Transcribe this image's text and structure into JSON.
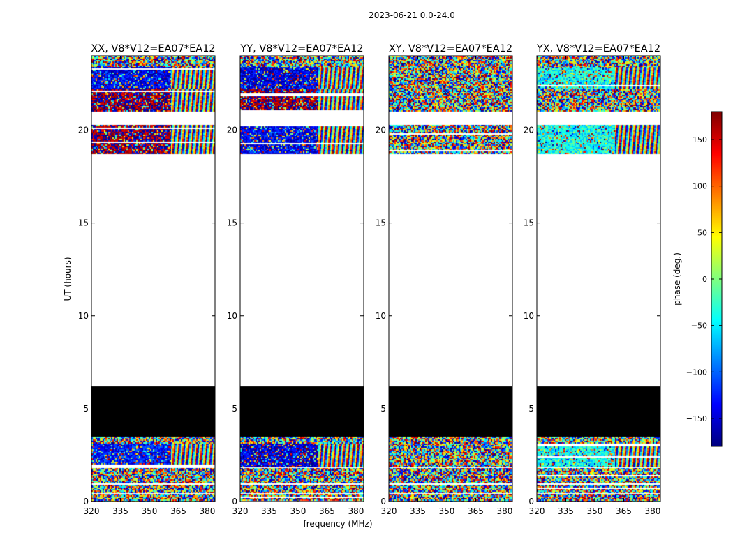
{
  "figure": {
    "suptitle": "2023-06-21 0.0-24.0",
    "xlabel": "frequency (MHz)",
    "ylabel": "UT (hours)"
  },
  "colorbar": {
    "label": "phase (deg.)",
    "range": [
      -180,
      180
    ],
    "ticks": [
      150,
      100,
      50,
      0,
      -50,
      -100,
      -150
    ],
    "tick_labels": [
      "150",
      "100",
      "50",
      "0",
      "−50",
      "−100",
      "−150"
    ],
    "colormap": [
      "#00007f",
      "#0000ff",
      "#007fff",
      "#00ffff",
      "#7fff7f",
      "#ffff00",
      "#ff7f00",
      "#ff0000",
      "#7f0000"
    ]
  },
  "chart_data": [
    {
      "type": "heatmap",
      "title": "XX, V8*V12=EA07*EA12",
      "xlim": [
        320,
        384
      ],
      "ylim": [
        0,
        24
      ],
      "xticks": [
        320,
        335,
        350,
        365,
        380
      ],
      "xtick_labels": [
        "320",
        "335",
        "350",
        "365",
        "380"
      ],
      "yticks": [
        0,
        5,
        10,
        15,
        20
      ],
      "ytick_labels": [
        "0",
        "5",
        "10",
        "15",
        "20"
      ],
      "bands": [
        {
          "t0": 0.0,
          "t1": 0.4,
          "kind": "noise"
        },
        {
          "t0": 0.4,
          "t1": 0.45,
          "kind": "empty"
        },
        {
          "t0": 0.45,
          "t1": 0.9,
          "kind": "noise"
        },
        {
          "t0": 0.9,
          "t1": 1.0,
          "kind": "empty"
        },
        {
          "t0": 1.0,
          "t1": 1.8,
          "kind": "noise"
        },
        {
          "t0": 1.8,
          "t1": 1.85,
          "kind": "empty"
        },
        {
          "t0": 1.85,
          "t1": 3.1,
          "kind": "phase",
          "base": -130,
          "fringe_from": 361
        },
        {
          "t0": 3.1,
          "t1": 3.5,
          "kind": "noise"
        },
        {
          "t0": 3.5,
          "t1": 6.2,
          "kind": "flagged"
        },
        {
          "t0": 18.7,
          "t1": 20.3,
          "kind": "phase",
          "base": 175,
          "fringe_from": 361
        },
        {
          "t0": 21.0,
          "t1": 22.2,
          "kind": "phase",
          "base": 175,
          "fringe_from": 361
        },
        {
          "t0": 22.2,
          "t1": 23.4,
          "kind": "phase",
          "base": -140,
          "fringe_from": 361
        },
        {
          "t0": 23.4,
          "t1": 24.0,
          "kind": "noise"
        }
      ]
    },
    {
      "type": "heatmap",
      "title": "YY, V8*V12=EA07*EA12",
      "xlim": [
        320,
        384
      ],
      "ylim": [
        0,
        24
      ],
      "xticks": [
        320,
        335,
        350,
        365,
        380
      ],
      "xtick_labels": [
        "320",
        "335",
        "350",
        "365",
        "380"
      ],
      "yticks": [
        0,
        5,
        10,
        15,
        20
      ],
      "ytick_labels": [
        "0",
        "5",
        "10",
        "15",
        "20"
      ],
      "bands": [
        {
          "t0": 0.0,
          "t1": 0.4,
          "kind": "noise"
        },
        {
          "t0": 0.4,
          "t1": 0.45,
          "kind": "empty"
        },
        {
          "t0": 0.45,
          "t1": 0.9,
          "kind": "noise"
        },
        {
          "t0": 0.9,
          "t1": 1.0,
          "kind": "empty"
        },
        {
          "t0": 1.0,
          "t1": 1.8,
          "kind": "noise"
        },
        {
          "t0": 1.8,
          "t1": 1.85,
          "kind": "empty"
        },
        {
          "t0": 1.85,
          "t1": 3.1,
          "kind": "phase",
          "base": -150,
          "fringe_from": 360
        },
        {
          "t0": 3.1,
          "t1": 3.5,
          "kind": "noise"
        },
        {
          "t0": 3.5,
          "t1": 6.2,
          "kind": "flagged"
        },
        {
          "t0": 18.7,
          "t1": 20.3,
          "kind": "phase",
          "base": -140,
          "fringe_from": 360
        },
        {
          "t0": 21.0,
          "t1": 22.2,
          "kind": "phase",
          "base": 175,
          "fringe_from": 360
        },
        {
          "t0": 22.2,
          "t1": 23.4,
          "kind": "phase",
          "base": -145,
          "fringe_from": 360
        },
        {
          "t0": 23.4,
          "t1": 24.0,
          "kind": "noise"
        }
      ]
    },
    {
      "type": "heatmap",
      "title": "XY, V8*V12=EA07*EA12",
      "xlim": [
        320,
        384
      ],
      "ylim": [
        0,
        24
      ],
      "xticks": [
        320,
        335,
        350,
        365,
        380
      ],
      "xtick_labels": [
        "320",
        "335",
        "350",
        "365",
        "380"
      ],
      "yticks": [
        0,
        5,
        10,
        15,
        20
      ],
      "ytick_labels": [
        "0",
        "5",
        "10",
        "15",
        "20"
      ],
      "bands": [
        {
          "t0": 0.0,
          "t1": 0.4,
          "kind": "noise"
        },
        {
          "t0": 0.4,
          "t1": 0.45,
          "kind": "empty"
        },
        {
          "t0": 0.45,
          "t1": 0.9,
          "kind": "noise"
        },
        {
          "t0": 0.9,
          "t1": 1.0,
          "kind": "empty"
        },
        {
          "t0": 1.0,
          "t1": 1.8,
          "kind": "noise"
        },
        {
          "t0": 1.8,
          "t1": 1.85,
          "kind": "empty"
        },
        {
          "t0": 1.85,
          "t1": 3.1,
          "kind": "noise"
        },
        {
          "t0": 3.1,
          "t1": 3.5,
          "kind": "noise"
        },
        {
          "t0": 3.5,
          "t1": 6.2,
          "kind": "flagged"
        },
        {
          "t0": 18.7,
          "t1": 20.3,
          "kind": "noise"
        },
        {
          "t0": 21.0,
          "t1": 22.2,
          "kind": "noise"
        },
        {
          "t0": 22.2,
          "t1": 23.4,
          "kind": "noise"
        },
        {
          "t0": 23.4,
          "t1": 24.0,
          "kind": "noise"
        }
      ]
    },
    {
      "type": "heatmap",
      "title": "YX, V8*V12=EA07*EA12",
      "xlim": [
        320,
        384
      ],
      "ylim": [
        0,
        24
      ],
      "xticks": [
        320,
        335,
        350,
        365,
        380
      ],
      "xtick_labels": [
        "320",
        "335",
        "350",
        "365",
        "380"
      ],
      "yticks": [
        0,
        5,
        10,
        15,
        20
      ],
      "ytick_labels": [
        "0",
        "5",
        "10",
        "15",
        "20"
      ],
      "bands": [
        {
          "t0": 0.0,
          "t1": 0.4,
          "kind": "noise"
        },
        {
          "t0": 0.4,
          "t1": 0.45,
          "kind": "empty"
        },
        {
          "t0": 0.45,
          "t1": 0.9,
          "kind": "noise"
        },
        {
          "t0": 0.9,
          "t1": 1.0,
          "kind": "empty"
        },
        {
          "t0": 1.0,
          "t1": 1.8,
          "kind": "noise"
        },
        {
          "t0": 1.8,
          "t1": 1.85,
          "kind": "empty"
        },
        {
          "t0": 1.85,
          "t1": 3.1,
          "kind": "phase",
          "base": -40,
          "fringe_from": 360
        },
        {
          "t0": 3.1,
          "t1": 3.5,
          "kind": "noise"
        },
        {
          "t0": 3.5,
          "t1": 6.2,
          "kind": "flagged"
        },
        {
          "t0": 18.7,
          "t1": 20.3,
          "kind": "phase",
          "base": -40,
          "fringe_from": 360
        },
        {
          "t0": 21.0,
          "t1": 22.2,
          "kind": "noise"
        },
        {
          "t0": 22.2,
          "t1": 23.4,
          "kind": "phase",
          "base": -40,
          "fringe_from": 360
        },
        {
          "t0": 23.4,
          "t1": 24.0,
          "kind": "noise"
        }
      ]
    }
  ]
}
